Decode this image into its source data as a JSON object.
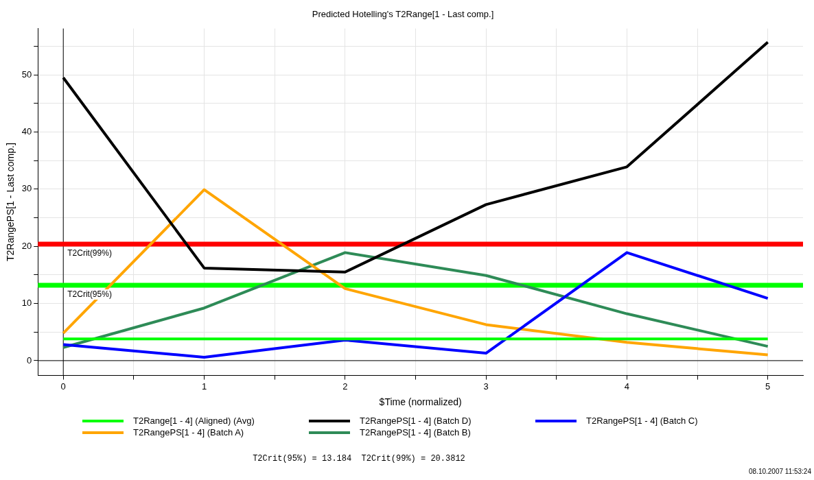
{
  "chart_data": {
    "type": "line",
    "title": "Predicted Hotelling's T2Range[1 - Last comp.]",
    "xlabel": "$Time (normalized)",
    "ylabel": "T2RangePS[1 - Last comp.]",
    "x": [
      0,
      1,
      2,
      3,
      4,
      5
    ],
    "series": [
      {
        "name": "T2Range[1 - 4] (Aligned) (Avg)",
        "color": "#00ff00",
        "values": [
          3.8,
          3.8,
          3.8,
          3.8,
          3.8,
          3.8
        ]
      },
      {
        "name": "T2RangePS[1 - 4] (Batch D)",
        "color": "#000000",
        "values": [
          49.5,
          16.2,
          15.5,
          27.3,
          33.9,
          55.7
        ]
      },
      {
        "name": "T2RangePS[1 - 4] (Batch C)",
        "color": "#0000ff",
        "values": [
          2.8,
          0.6,
          3.6,
          1.3,
          18.9,
          10.9
        ]
      },
      {
        "name": "T2RangePS[1 - 4] (Batch A)",
        "color": "#ffa500",
        "values": [
          4.8,
          29.9,
          12.6,
          6.3,
          3.2,
          1.0
        ]
      },
      {
        "name": "T2RangePS[1 - 4] (Batch B)",
        "color": "#2e8b57",
        "values": [
          2.3,
          9.2,
          18.9,
          14.9,
          8.2,
          2.5
        ]
      }
    ],
    "xlim": [
      -0.18,
      5.25
    ],
    "ylim": [
      -2.6,
      58.1
    ],
    "xticks": [
      0,
      {
        "value": 0.5,
        "label": null
      },
      1,
      {
        "value": 1.5,
        "label": null
      },
      2,
      {
        "value": 2.5,
        "label": null
      },
      3,
      {
        "value": 3.5,
        "label": null
      },
      4,
      {
        "value": 4.5,
        "label": null
      },
      5
    ],
    "yticks": [
      0,
      {
        "value": 5,
        "label": null
      },
      10,
      {
        "value": 15,
        "label": null
      },
      20,
      {
        "value": 25,
        "label": null
      },
      30,
      {
        "value": 35,
        "label": null
      },
      40,
      {
        "value": 45,
        "label": null
      },
      50,
      {
        "value": 55,
        "label": null
      }
    ],
    "ref_lines": [
      {
        "axis": "y",
        "value": 20.3812,
        "label": "T2Crit(99%)",
        "color": "#ff0000"
      },
      {
        "axis": "y",
        "value": 13.184,
        "label": "T2Crit(95%)",
        "color": "#00ff00"
      }
    ],
    "annotations": [
      "T2Crit(95%) = 13.184  T2Crit(99%) = 20.3812",
      "08.10.2007 11:53:24"
    ],
    "grid": true,
    "legend": "bottom",
    "marker": "none",
    "line_style": "solid"
  }
}
